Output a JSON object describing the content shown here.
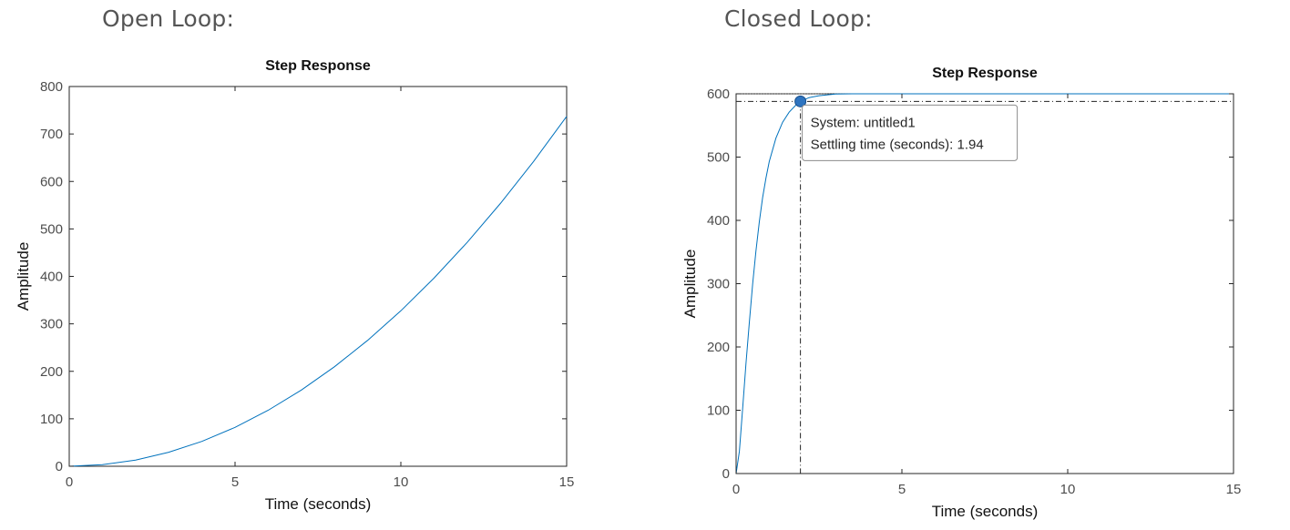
{
  "headings": {
    "open_loop": "Open Loop:",
    "closed_loop": "Closed Loop:"
  },
  "colors": {
    "line": "#0072bd",
    "axis": "#262626",
    "tick_label": "#4d4d4d",
    "annotation": "#262626"
  },
  "chart_data": [
    {
      "type": "line",
      "title": "Step Response",
      "xlabel": "Time (seconds)",
      "ylabel": "Amplitude",
      "xlim": [
        0,
        15
      ],
      "ylim": [
        0,
        800
      ],
      "xticks": [
        0,
        5,
        10,
        15
      ],
      "yticks": [
        0,
        100,
        200,
        300,
        400,
        500,
        600,
        700,
        800
      ],
      "grid": false,
      "series": [
        {
          "x": [
            0,
            1,
            2,
            3,
            4,
            5,
            6,
            7,
            8,
            9,
            10,
            11,
            12,
            13,
            14,
            15
          ],
          "y": [
            0,
            3.3,
            13.1,
            29.5,
            52.4,
            81.9,
            117.9,
            160.5,
            209.6,
            265.3,
            327.5,
            396.3,
            471.6,
            553.5,
            641.9,
            737
          ]
        }
      ]
    },
    {
      "type": "line",
      "title": "Step Response",
      "xlabel": "Time (seconds)",
      "ylabel": "Amplitude",
      "xlim": [
        0,
        15
      ],
      "ylim": [
        0,
        600
      ],
      "xticks": [
        0,
        5,
        10,
        15
      ],
      "yticks": [
        0,
        100,
        200,
        300,
        400,
        500,
        600
      ],
      "grid": false,
      "steady_state": 600,
      "settling_band": 588,
      "series": [
        {
          "x": [
            0,
            0.1,
            0.2,
            0.3,
            0.4,
            0.5,
            0.6,
            0.7,
            0.8,
            0.9,
            1.0,
            1.2,
            1.4,
            1.6,
            1.8,
            1.94,
            2.2,
            2.5,
            3.0,
            3.5,
            4,
            5,
            6,
            8,
            10,
            12,
            15
          ],
          "y": [
            0,
            35,
            105,
            175,
            240,
            300,
            352,
            398,
            436,
            467,
            493,
            530,
            555,
            571,
            582,
            588,
            594,
            597,
            599.5,
            600,
            600,
            600,
            600,
            600,
            600,
            600,
            600
          ]
        }
      ],
      "datatip": {
        "x": 1.94,
        "y": 588,
        "line1": "System: untitled1",
        "line2": "Settling time (seconds): 1.94"
      }
    }
  ]
}
